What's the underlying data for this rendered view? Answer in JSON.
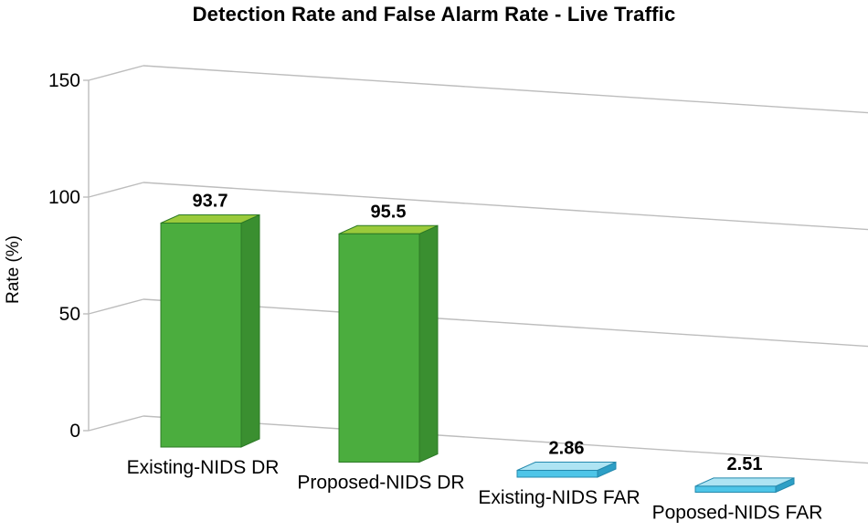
{
  "title": "Detection Rate and False Alarm Rate - Live Traffic",
  "chart_data": {
    "type": "bar",
    "style": "3d-column",
    "title": "Detection Rate and False Alarm Rate - Live Traffic",
    "xlabel": "",
    "ylabel": "Rate (%)",
    "ylim": [
      0,
      150
    ],
    "yticks": [
      0,
      50,
      100,
      150
    ],
    "grid": true,
    "legend": false,
    "categories": [
      "Existing-NIDS DR",
      "Proposed-NIDS DR",
      "Existing-NIDS FAR",
      "Poposed-NIDS FAR"
    ],
    "values": [
      93.7,
      95.5,
      2.86,
      2.51
    ],
    "bars": [
      {
        "category": "Existing-NIDS DR",
        "value": 93.7,
        "label": "93.7",
        "colors": {
          "front": "#4bad3e",
          "top": "#9aca3b",
          "side": "#3a8f30",
          "edge": "#2c7a26"
        }
      },
      {
        "category": "Proposed-NIDS DR",
        "value": 95.5,
        "label": "95.5",
        "colors": {
          "front": "#4bad3e",
          "top": "#9aca3b",
          "side": "#3a8f30",
          "edge": "#2c7a26"
        }
      },
      {
        "category": "Existing-NIDS FAR",
        "value": 2.86,
        "label": "2.86",
        "colors": {
          "front": "#4ec5e8",
          "top": "#aee4f3",
          "side": "#2d9fc6",
          "edge": "#2489ad"
        }
      },
      {
        "category": "Poposed-NIDS FAR",
        "value": 2.51,
        "label": "2.51",
        "colors": {
          "front": "#4ec5e8",
          "top": "#aee4f3",
          "side": "#2d9fc6",
          "edge": "#2489ad"
        }
      }
    ],
    "colors": {
      "gridline": "#bdbdbd",
      "axis": "#bdbdbd",
      "text": "#000000"
    }
  }
}
